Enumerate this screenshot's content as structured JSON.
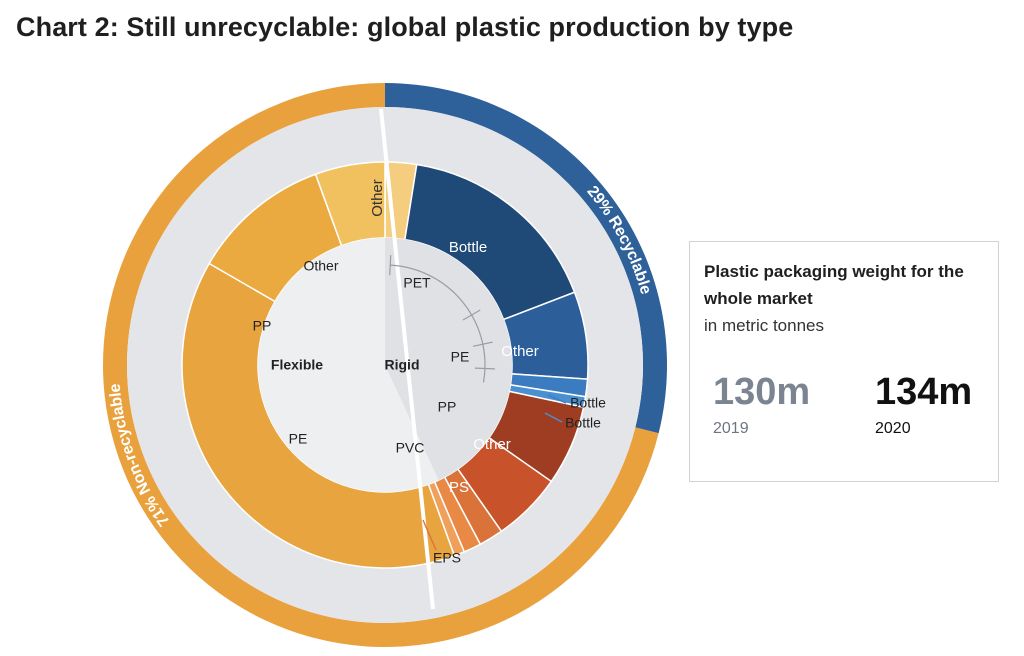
{
  "title": "Chart 2: Still unrecyclable: global plastic production by type",
  "colors": {
    "background_ring": "#e4e5e8",
    "center_disc": "#eeeff1",
    "orange": "#e9a13d",
    "blue": "#2e609a",
    "divider": "#ffffff"
  },
  "chart_data": {
    "type": "sunburst",
    "title": "Chart 2: Still unrecyclable: global plastic production by type",
    "rings": {
      "outer": [
        {
          "label": "29% Recyclable",
          "share": 29,
          "color": "#2e609a"
        },
        {
          "label": "71% Non-recyclable",
          "share": 71,
          "color": "#e9a13d"
        }
      ],
      "inner": [
        {
          "label": "Rigid",
          "share": 46
        },
        {
          "label": "Flexible",
          "share": 54
        }
      ],
      "middle": [
        {
          "label": "PET",
          "share": 16
        },
        {
          "label": "PE",
          "share": 7
        },
        {
          "label": "PP",
          "share": 5
        },
        {
          "label": "PVC",
          "share": 1
        },
        {
          "label": "PS",
          "share": 4
        },
        {
          "label": "EPS",
          "share": 2
        },
        {
          "label": "PE",
          "share": 28
        },
        {
          "label": "PP",
          "share": 17
        },
        {
          "label": "Other",
          "share": 9
        }
      ],
      "segments": [
        {
          "label": "Other",
          "parent": "PET",
          "share": 3,
          "color": "#f4cd7e"
        },
        {
          "label": "Bottle",
          "parent": "PET",
          "share": 12,
          "color": "#1f4a78"
        },
        {
          "label": "Other",
          "parent": "PE",
          "share": 6,
          "color": "#2c5f9a"
        },
        {
          "label": "Bottle",
          "parent": "PE",
          "share": 2,
          "color": "#3b7cc0"
        },
        {
          "label": "Bottle",
          "parent": "PP",
          "share": 1,
          "color": "#4a90d0"
        },
        {
          "label": "Other",
          "parent": "PP",
          "share": 7,
          "color": "#9f3d22"
        },
        {
          "label": "PS",
          "parent": "PS",
          "share": 4.5,
          "color": "#c8522a"
        },
        {
          "label": "",
          "parent": "EPS",
          "share": 2.5,
          "color": "#d9733a"
        },
        {
          "label": "",
          "parent": "EPS",
          "share": 1,
          "color": "#e88a45"
        },
        {
          "label": "",
          "parent": "PVC",
          "share": 0.5,
          "color": "#efa15c"
        },
        {
          "label": "PE",
          "parent": "PE",
          "share": 28,
          "color": "#e8a43e"
        },
        {
          "label": "PP",
          "parent": "PP",
          "share": 16.5,
          "color": "#ebaa40"
        },
        {
          "label": "Other",
          "parent": "Other",
          "share": 9,
          "color": "#f1c05f"
        }
      ]
    }
  },
  "info_box": {
    "heading": "Plastic packaging weight for the whole market",
    "subheading": "in metric tonnes",
    "values": [
      {
        "value": "130m",
        "year": "2019"
      },
      {
        "value": "134m",
        "year": "2020"
      }
    ]
  }
}
